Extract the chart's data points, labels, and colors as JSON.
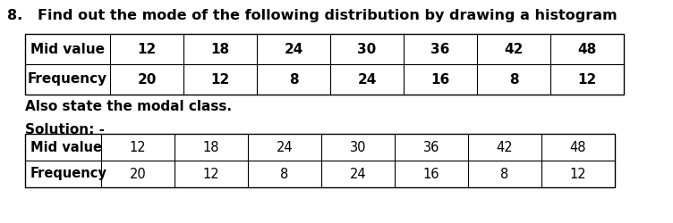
{
  "question_number": "8.",
  "question_text": "Find out the mode of the following distribution by drawing a histogram",
  "mid_values_header": "Mid value",
  "freq_header": "Frequency",
  "mid_values": [
    "12",
    "18",
    "24",
    "30",
    "36",
    "42",
    "48"
  ],
  "frequencies": [
    "20",
    "12",
    "8",
    "24",
    "16",
    "8",
    "12"
  ],
  "also_text": "Also state the modal class.",
  "solution_text": "Solution: -",
  "bg_color": "#ffffff",
  "text_color": "#000000",
  "border_color": "#000000",
  "q_fontsize": 11.5,
  "table1_fontsize": 11.0,
  "table2_fontsize": 10.5,
  "also_fontsize": 11.0,
  "sol_fontsize": 11.0,
  "fig_width": 7.52,
  "fig_height": 2.5,
  "dpi": 100
}
